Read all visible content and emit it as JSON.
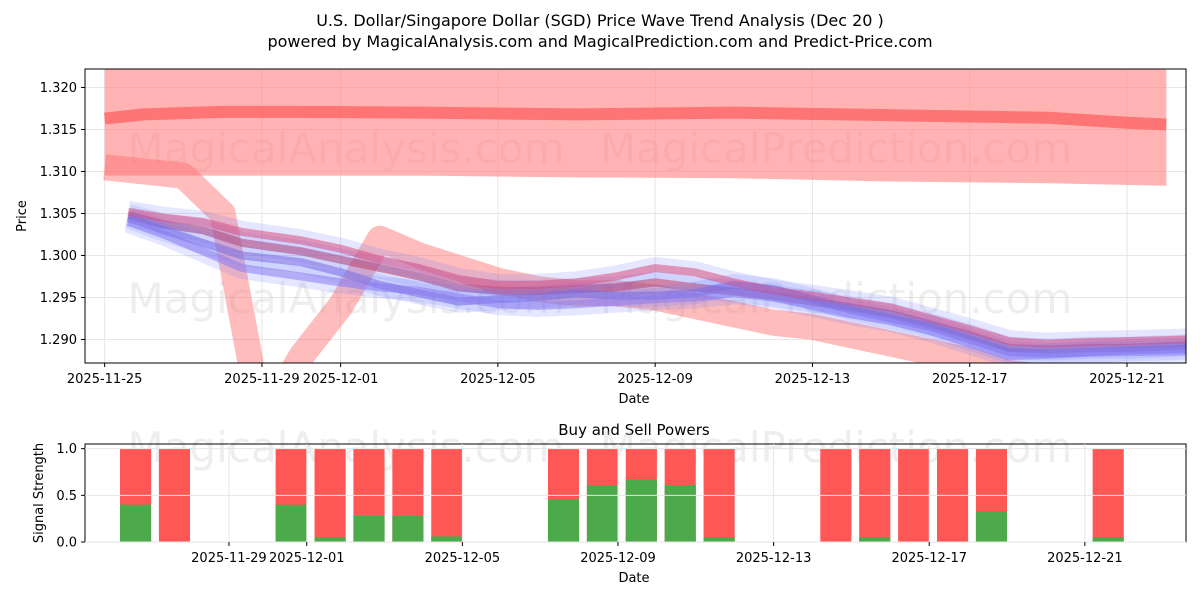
{
  "chart_data": [
    {
      "type": "area",
      "title_line1": "U.S. Dollar/Singapore Dollar (SGD) Price Wave Trend Analysis (Dec 20 )",
      "title_line2": "powered by MagicalAnalysis.com and MagicalPrediction.com and Predict-Price.com",
      "xlabel": "Date",
      "ylabel": "Price",
      "x_ticks": [
        "2025-11-25",
        "2025-11-29",
        "2025-12-01",
        "2025-12-05",
        "2025-12-09",
        "2025-12-13",
        "2025-12-17",
        "2025-12-21"
      ],
      "y_ticks": [
        "1.290",
        "1.295",
        "1.300",
        "1.305",
        "1.310",
        "1.315",
        "1.320"
      ],
      "xlim": [
        -0.5,
        27.5
      ],
      "ylim": [
        1.2872,
        1.3222
      ],
      "watermarks": [
        "MagicalAnalysis.com",
        "MagicalPrediction.com"
      ],
      "upper_band": {
        "x": [
          0,
          1,
          3,
          5,
          8,
          12,
          16,
          20,
          24,
          26,
          27
        ],
        "lower": [
          1.3095,
          1.3095,
          1.3095,
          1.3095,
          1.3095,
          1.3093,
          1.3092,
          1.3088,
          1.3086,
          1.3084,
          1.3083
        ],
        "upper": [
          1.3222,
          1.3222,
          1.3222,
          1.3222,
          1.3222,
          1.3222,
          1.3222,
          1.3222,
          1.3222,
          1.3222,
          1.3222
        ],
        "line": [
          1.3163,
          1.3168,
          1.3171,
          1.3171,
          1.317,
          1.3168,
          1.317,
          1.3167,
          1.3164,
          1.3158,
          1.3156
        ]
      },
      "series": [
        {
          "name": "wave-main",
          "x": [
            0.6,
            1.5,
            2.5,
            3.5,
            5,
            6,
            7,
            8,
            9,
            10,
            11,
            12,
            13,
            14,
            15,
            16,
            17,
            18,
            19,
            20,
            21,
            22,
            23,
            24,
            25,
            26,
            27.5
          ],
          "values": [
            1.3048,
            1.3037,
            1.303,
            1.3015,
            1.3005,
            1.2995,
            1.2985,
            1.2975,
            1.2962,
            1.2958,
            1.2958,
            1.296,
            1.2962,
            1.2968,
            1.2962,
            1.2957,
            1.2952,
            1.2945,
            1.2938,
            1.293,
            1.2918,
            1.2905,
            1.289,
            1.2888,
            1.289,
            1.289,
            1.2893
          ]
        },
        {
          "name": "wave-2",
          "x": [
            0.6,
            1.5,
            2.5,
            3.5,
            5,
            6,
            7,
            8,
            9,
            10,
            11,
            12,
            13,
            14,
            15,
            16,
            17,
            18,
            19,
            20,
            21,
            22,
            23,
            24,
            25,
            26,
            27.5
          ],
          "values": [
            1.3045,
            1.303,
            1.3015,
            1.3,
            1.2992,
            1.298,
            1.2965,
            1.2955,
            1.2945,
            1.2948,
            1.295,
            1.2955,
            1.2952,
            1.2952,
            1.2955,
            1.2965,
            1.296,
            1.2948,
            1.2935,
            1.2925,
            1.2915,
            1.29,
            1.2885,
            1.2883,
            1.2885,
            1.2887,
            1.2889
          ]
        },
        {
          "name": "wave-3",
          "x": [
            0.6,
            1.5,
            2.5,
            3.5,
            5,
            6,
            7,
            8,
            9,
            10,
            11,
            12,
            13,
            14,
            15,
            16,
            17,
            18,
            19,
            20,
            21,
            22,
            23,
            24,
            25,
            26,
            27.5
          ],
          "values": [
            1.3052,
            1.3045,
            1.304,
            1.3028,
            1.3018,
            1.3008,
            1.2995,
            1.2985,
            1.2972,
            1.2965,
            1.2965,
            1.2968,
            1.2975,
            1.2985,
            1.298,
            1.2968,
            1.2958,
            1.2952,
            1.2945,
            1.2938,
            1.2925,
            1.2912,
            1.2898,
            1.2895,
            1.2897,
            1.2898,
            1.29
          ]
        },
        {
          "name": "wave-4",
          "x": [
            0.6,
            1.5,
            2.5,
            3.5,
            5,
            6,
            7,
            8,
            9,
            10,
            11,
            12,
            13,
            14,
            15,
            16,
            17,
            18,
            19,
            20,
            21,
            22,
            23,
            24,
            25,
            26,
            27.5
          ],
          "values": [
            1.304,
            1.3025,
            1.3005,
            1.2985,
            1.2975,
            1.2968,
            1.2962,
            1.2958,
            1.295,
            1.2942,
            1.294,
            1.2942,
            1.2945,
            1.2948,
            1.295,
            1.2955,
            1.295,
            1.294,
            1.293,
            1.2922,
            1.291,
            1.2895,
            1.288,
            1.2882,
            1.2884,
            1.2885,
            1.2886
          ]
        }
      ],
      "red_wave": {
        "x": [
          0,
          1,
          2,
          3,
          4,
          5,
          6,
          7,
          8,
          9,
          10,
          11,
          12,
          13,
          14,
          15,
          16,
          17,
          18,
          19,
          20,
          21,
          22,
          23,
          24,
          25,
          26,
          27
        ],
        "values": [
          1.3105,
          1.31,
          1.3095,
          1.305,
          1.28,
          1.288,
          1.294,
          1.302,
          1.3,
          1.2985,
          1.297,
          1.296,
          1.2955,
          1.2955,
          1.295,
          1.294,
          1.293,
          1.292,
          1.2915,
          1.2905,
          1.2895,
          1.2885,
          1.2875,
          1.286,
          1.2855,
          1.2855,
          1.2855,
          1.2855
        ]
      }
    },
    {
      "type": "bar",
      "title": "Buy and Sell Powers",
      "xlabel": "Date",
      "ylabel": "Signal Strength",
      "x_ticks": [
        "2025-11-29",
        "2025-12-01",
        "2025-12-05",
        "2025-12-09",
        "2025-12-13",
        "2025-12-17",
        "2025-12-21"
      ],
      "y_ticks": [
        "0.0",
        "0.5",
        "1.0"
      ],
      "ylim": [
        0,
        1.05
      ],
      "colors": {
        "buy": "#4caa4a",
        "sell": "#ff4d4d"
      },
      "bars": [
        {
          "day": 1,
          "buy": 0.4,
          "total": 1
        },
        {
          "day": 2,
          "buy": 0.0,
          "total": 1
        },
        {
          "day": 5,
          "buy": 0.4,
          "total": 1
        },
        {
          "day": 6,
          "buy": 0.05,
          "total": 1
        },
        {
          "day": 7,
          "buy": 0.28,
          "total": 1
        },
        {
          "day": 8,
          "buy": 0.28,
          "total": 1
        },
        {
          "day": 9,
          "buy": 0.06,
          "total": 1
        },
        {
          "day": 12,
          "buy": 0.46,
          "total": 1
        },
        {
          "day": 13,
          "buy": 0.61,
          "total": 1
        },
        {
          "day": 14,
          "buy": 0.67,
          "total": 1
        },
        {
          "day": 15,
          "buy": 0.61,
          "total": 1
        },
        {
          "day": 16,
          "buy": 0.05,
          "total": 1
        },
        {
          "day": 19,
          "buy": 0.0,
          "total": 1
        },
        {
          "day": 20,
          "buy": 0.05,
          "total": 1
        },
        {
          "day": 21,
          "buy": 0.0,
          "total": 1
        },
        {
          "day": 22,
          "buy": 0.0,
          "total": 1
        },
        {
          "day": 23,
          "buy": 0.33,
          "total": 1
        },
        {
          "day": 26,
          "buy": 0.05,
          "total": 1
        }
      ]
    }
  ]
}
